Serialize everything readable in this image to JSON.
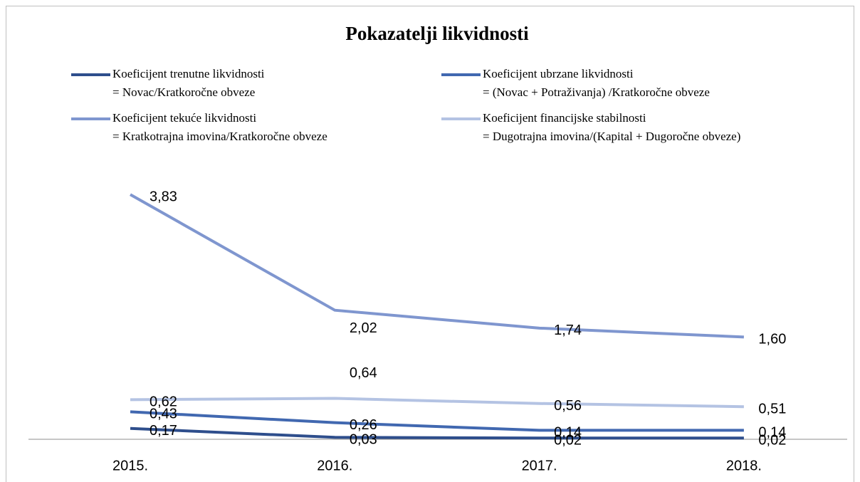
{
  "chart_data": {
    "type": "line",
    "title": "Pokazatelji likvidnosti",
    "categories": [
      "2015.",
      "2016.",
      "2017.",
      "2018."
    ],
    "ylim": [
      0,
      4
    ],
    "series": [
      {
        "name": "Koeficijent trenutne likvidnosti",
        "formula": "= Novac/Kratkoročne obveze",
        "color": "#2e4e8c",
        "values": [
          0.17,
          0.03,
          0.02,
          0.02
        ],
        "value_labels": [
          "0,17",
          "0,03",
          "0,02",
          "0,02"
        ]
      },
      {
        "name": "Koeficijent ubrzane likvidnosti",
        "formula": "= (Novac + Potraživanja) /Kratkoročne obveze",
        "color": "#4168b0",
        "values": [
          0.43,
          0.26,
          0.14,
          0.14
        ],
        "value_labels": [
          "0,43",
          "0,26",
          "0,14",
          "0,14"
        ]
      },
      {
        "name": "Koeficijent tekuće likvidnosti",
        "formula": "= Kratkotrajna imovina/Kratkoročne obveze",
        "color": "#7f96cf",
        "values": [
          3.83,
          2.02,
          1.74,
          1.6
        ],
        "value_labels": [
          "3,83",
          "2,02",
          "1,74",
          "1,60"
        ]
      },
      {
        "name": "Koeficijent financijske stabilnosti",
        "formula": "= Dugotrajna imovina/(Kapital + Dugoročne obveze)",
        "color": "#b4c3e3",
        "values": [
          0.62,
          0.64,
          0.56,
          0.51
        ],
        "value_labels": [
          "0,62",
          "0,64",
          "0,56",
          "0,51"
        ]
      }
    ]
  }
}
